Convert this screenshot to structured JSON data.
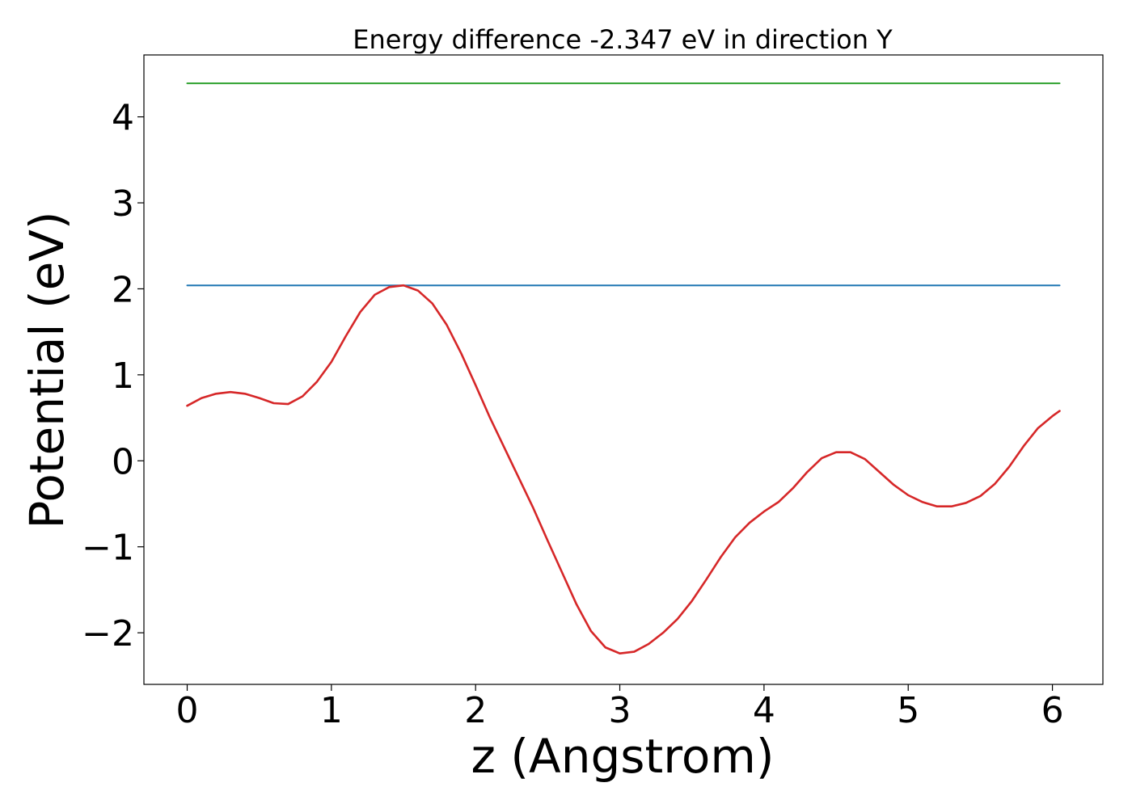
{
  "chart_data": {
    "type": "line",
    "title": "Energy difference -2.347 eV in direction Y",
    "xlabel": "z (Angstrom)",
    "ylabel": "Potential (eV)",
    "xlim": [
      -0.3,
      6.35
    ],
    "ylim": [
      -2.6,
      4.72
    ],
    "x_ticks": [
      0,
      1,
      2,
      3,
      4,
      5,
      6
    ],
    "x_tick_labels": [
      "0",
      "1",
      "2",
      "3",
      "4",
      "5",
      "6"
    ],
    "y_ticks": [
      -2,
      -1,
      0,
      1,
      2,
      3,
      4
    ],
    "y_tick_labels": [
      "−2",
      "−1",
      "0",
      "1",
      "2",
      "3",
      "4"
    ],
    "grid": false,
    "series": [
      {
        "color": "#2ca02c",
        "style": "horizontal-line",
        "x": [
          0,
          6.05
        ],
        "y": [
          4.39,
          4.39
        ]
      },
      {
        "color": "#1f77b4",
        "style": "horizontal-line",
        "x": [
          0,
          6.05
        ],
        "y": [
          2.04,
          2.04
        ]
      },
      {
        "color": "#d62728",
        "style": "curve",
        "x": [
          0,
          0.1,
          0.2,
          0.3,
          0.4,
          0.5,
          0.6,
          0.7,
          0.8,
          0.9,
          1.0,
          1.1,
          1.2,
          1.3,
          1.4,
          1.5,
          1.6,
          1.7,
          1.8,
          1.9,
          2.0,
          2.1,
          2.2,
          2.3,
          2.4,
          2.5,
          2.6,
          2.7,
          2.8,
          2.9,
          3.0,
          3.1,
          3.2,
          3.3,
          3.4,
          3.5,
          3.6,
          3.7,
          3.8,
          3.9,
          4.0,
          4.1,
          4.2,
          4.3,
          4.4,
          4.5,
          4.6,
          4.7,
          4.8,
          4.9,
          5.0,
          5.1,
          5.2,
          5.3,
          5.4,
          5.5,
          5.6,
          5.7,
          5.8,
          5.9,
          6.0,
          6.05
        ],
        "y": [
          0.64,
          0.73,
          0.78,
          0.8,
          0.78,
          0.73,
          0.67,
          0.66,
          0.75,
          0.92,
          1.15,
          1.45,
          1.73,
          1.93,
          2.02,
          2.04,
          1.98,
          1.83,
          1.58,
          1.25,
          0.88,
          0.5,
          0.15,
          -0.2,
          -0.55,
          -0.93,
          -1.3,
          -1.67,
          -1.98,
          -2.17,
          -2.24,
          -2.22,
          -2.13,
          -2.0,
          -1.84,
          -1.63,
          -1.38,
          -1.12,
          -0.89,
          -0.72,
          -0.59,
          -0.48,
          -0.32,
          -0.13,
          0.03,
          0.1,
          0.1,
          0.02,
          -0.13,
          -0.28,
          -0.4,
          -0.48,
          -0.53,
          -0.53,
          -0.49,
          -0.41,
          -0.27,
          -0.07,
          0.17,
          0.38,
          0.52,
          0.58
        ]
      }
    ]
  }
}
